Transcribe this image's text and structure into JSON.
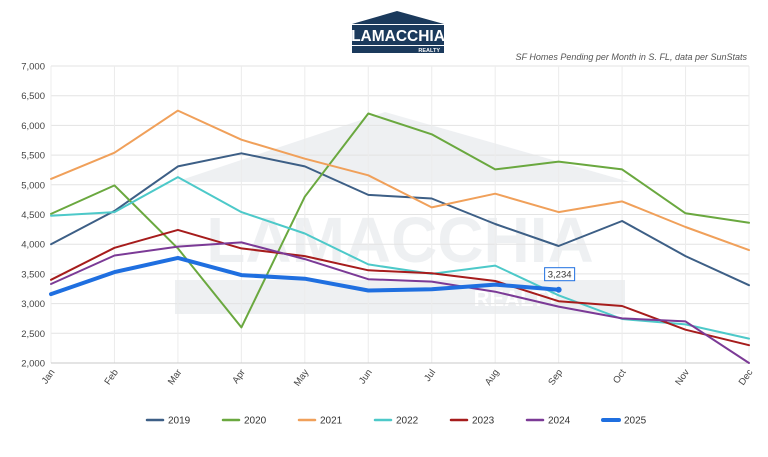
{
  "logo": {
    "name": "LAMACCHIA",
    "tagline": "REALTY",
    "color": "#1b3a5c"
  },
  "watermark": {
    "name": "LAMACCHIA",
    "tagline": "REALTY"
  },
  "chart_data": {
    "type": "line",
    "subtitle": "SF Homes Pending per Month in S. FL, data per SunStats",
    "title": "",
    "xlabel": "",
    "ylabel": "",
    "categories": [
      "Jan",
      "Feb",
      "Mar",
      "Apr",
      "May",
      "Jun",
      "Jul",
      "Aug",
      "Sep",
      "Oct",
      "Nov",
      "Dec"
    ],
    "ylim": [
      2000,
      7000
    ],
    "yticks": [
      2000,
      2500,
      3000,
      3500,
      4000,
      4500,
      5000,
      5500,
      6000,
      6500,
      7000
    ],
    "ytick_labels": [
      "2,000",
      "2,500",
      "3,000",
      "3,500",
      "4,000",
      "4,500",
      "5,000",
      "5,500",
      "6,000",
      "6,500",
      "7,000"
    ],
    "grid": true,
    "legend_position": "bottom",
    "series": [
      {
        "name": "2019",
        "color": "#3d5f86",
        "width": 2,
        "values": [
          4000,
          4560,
          5310,
          5530,
          5310,
          4830,
          4770,
          4340,
          3970,
          4390,
          3800,
          3310
        ]
      },
      {
        "name": "2020",
        "color": "#6aa83f",
        "width": 2,
        "values": [
          4510,
          4990,
          3930,
          2600,
          4800,
          6200,
          5850,
          5260,
          5390,
          5260,
          4520,
          4360
        ]
      },
      {
        "name": "2021",
        "color": "#f0a05a",
        "width": 2,
        "values": [
          5100,
          5540,
          6250,
          5760,
          5440,
          5160,
          4620,
          4850,
          4540,
          4720,
          4290,
          3900
        ]
      },
      {
        "name": "2022",
        "color": "#4dc9c9",
        "width": 2,
        "values": [
          4480,
          4540,
          5130,
          4540,
          4180,
          3660,
          3500,
          3640,
          3140,
          2740,
          2650,
          2410
        ]
      },
      {
        "name": "2023",
        "color": "#a61c1c",
        "width": 2,
        "values": [
          3400,
          3940,
          4240,
          3930,
          3800,
          3560,
          3510,
          3380,
          3040,
          2960,
          2560,
          2300
        ]
      },
      {
        "name": "2024",
        "color": "#7b3a96",
        "width": 2,
        "values": [
          3330,
          3810,
          3960,
          4030,
          3750,
          3410,
          3370,
          3200,
          2950,
          2750,
          2700,
          2000
        ]
      },
      {
        "name": "2025",
        "color": "#1f6fe0",
        "width": 4,
        "values": [
          3160,
          3530,
          3770,
          3480,
          3420,
          3220,
          3240,
          3320,
          3234,
          null,
          null,
          null
        ]
      }
    ],
    "annotation": {
      "series": "2025",
      "category": "Sep",
      "text": "3,234"
    }
  }
}
